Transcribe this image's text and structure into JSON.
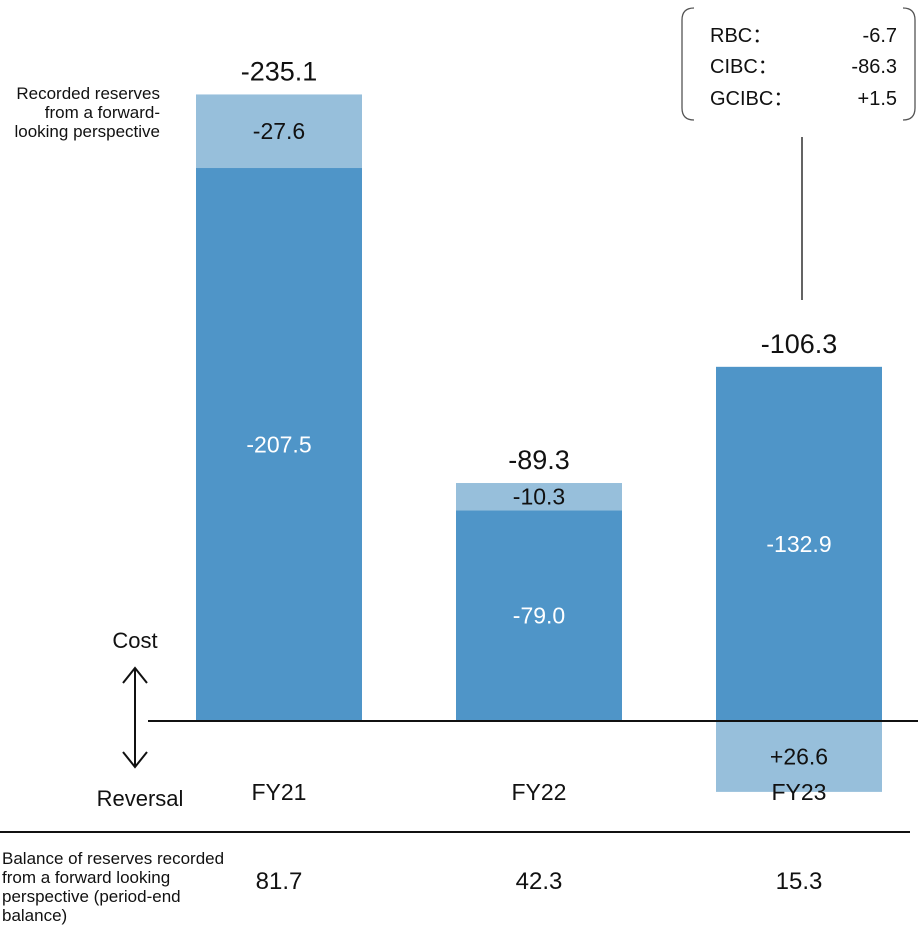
{
  "chart_data": {
    "type": "bar",
    "categories": [
      "FY21",
      "FY22",
      "FY23"
    ],
    "series": [
      {
        "name": "",
        "values": [
          -207.5,
          -79.0,
          -132.9
        ]
      },
      {
        "name": "Recorded reserves from a forward-looking perspective",
        "values": [
          -27.6,
          -10.3,
          26.6
        ]
      }
    ],
    "totals": [
      -235.1,
      -89.3,
      -106.3
    ],
    "segment_labels": {
      "base": [
        "-207.5",
        "-79.0",
        "-132.9"
      ],
      "forward": [
        "-27.6",
        "-10.3",
        "+26.6"
      ]
    },
    "total_labels": [
      "-235.1",
      "-89.3",
      "-106.3"
    ],
    "colors": {
      "base": "#4f95c8",
      "forward": "#97bfdb",
      "axis": "#111111"
    },
    "axis_text": {
      "up": "Cost",
      "down": "Reversal"
    },
    "series_annotation": "Recorded reserves from a forward-looking perspective",
    "callout": {
      "items": [
        {
          "label": "RBC：",
          "value": "-6.7"
        },
        {
          "label": "CIBC：",
          "value": "-86.3"
        },
        {
          "label": "GCIBC：",
          "value": "+1.5"
        }
      ]
    },
    "balance_row": {
      "label": "Balance of reserves recorded from a forward looking perspective (period-end balance)",
      "values": [
        "81.7",
        "42.3",
        "15.3"
      ]
    }
  }
}
